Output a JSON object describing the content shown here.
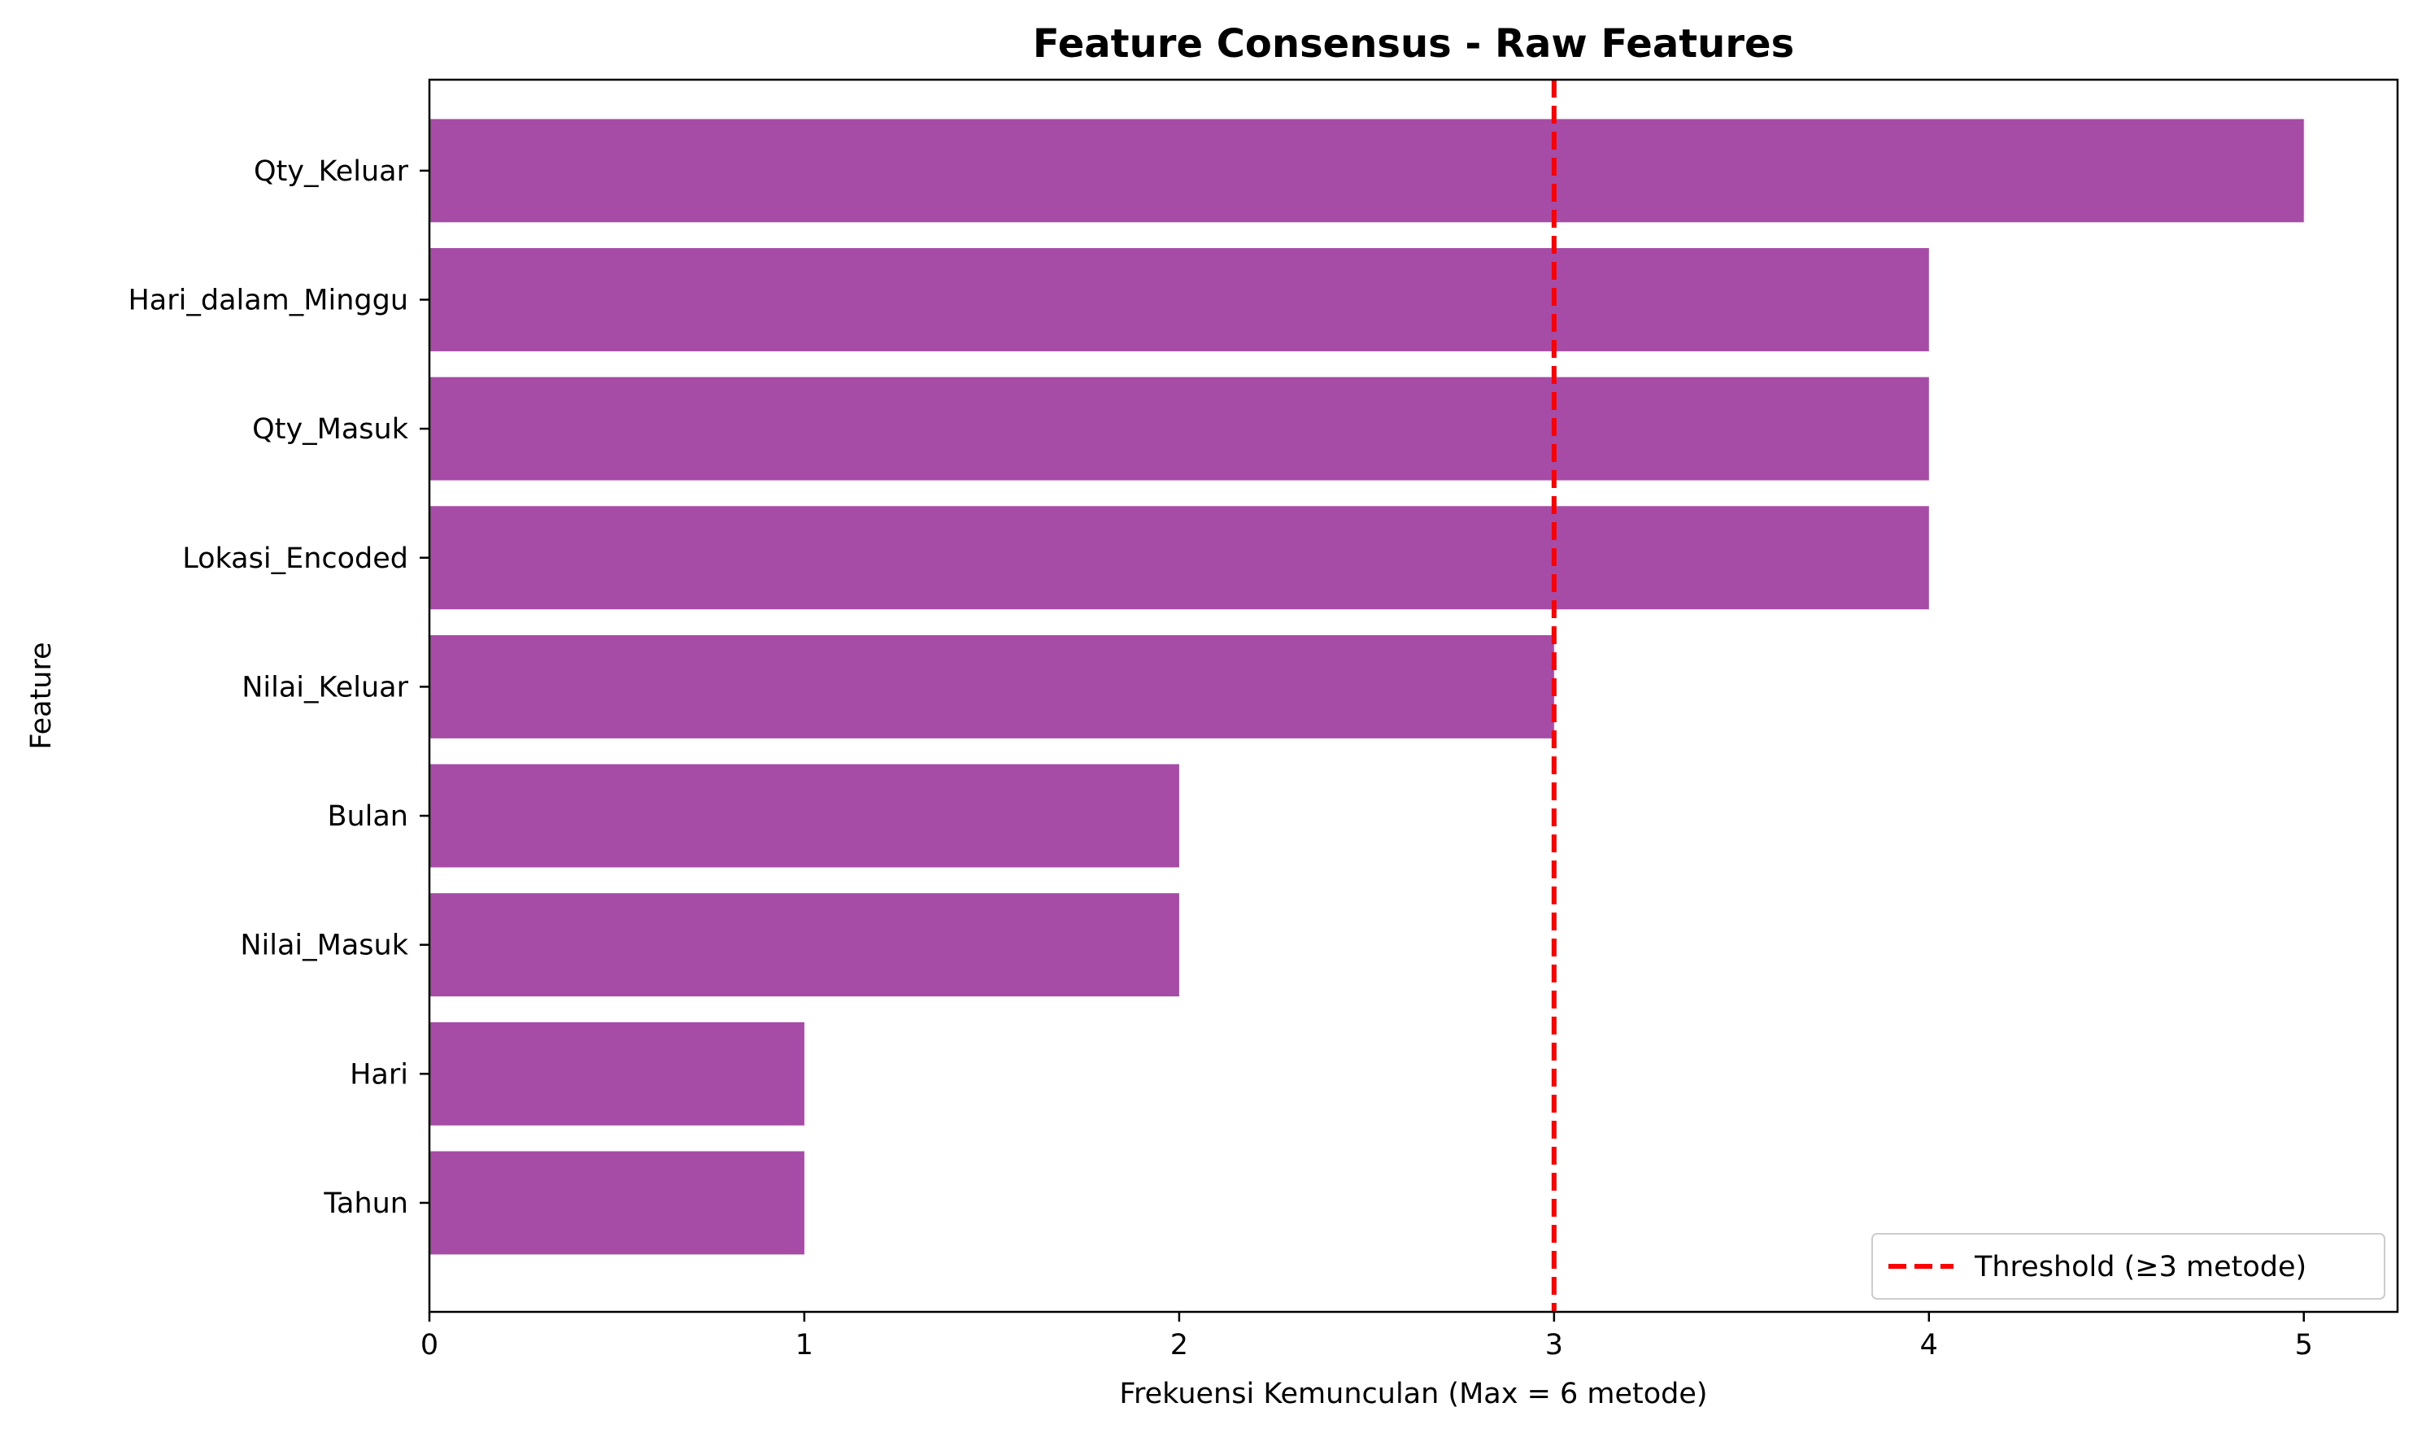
{
  "chart_data": {
    "type": "bar",
    "orientation": "horizontal",
    "title": "Feature Consensus - Raw Features",
    "xlabel": "Frekuensi Kemunculan (Max = 6 metode)",
    "ylabel": "Feature",
    "categories": [
      "Qty_Keluar",
      "Hari_dalam_Minggu",
      "Qty_Masuk",
      "Lokasi_Encoded",
      "Nilai_Keluar",
      "Bulan",
      "Nilai_Masuk",
      "Hari",
      "Tahun"
    ],
    "values": [
      5,
      4,
      4,
      4,
      3,
      2,
      2,
      1,
      1
    ],
    "xlim": [
      0,
      5.25
    ],
    "xticks": [
      0,
      1,
      2,
      3,
      4,
      5
    ],
    "bar_color": "#a64ca6",
    "threshold": {
      "value": 3,
      "label": "Threshold (≥3 metode)",
      "color": "#ff0000",
      "style": "dashed"
    },
    "legend": {
      "placement": "lower-right"
    },
    "grid": false
  }
}
